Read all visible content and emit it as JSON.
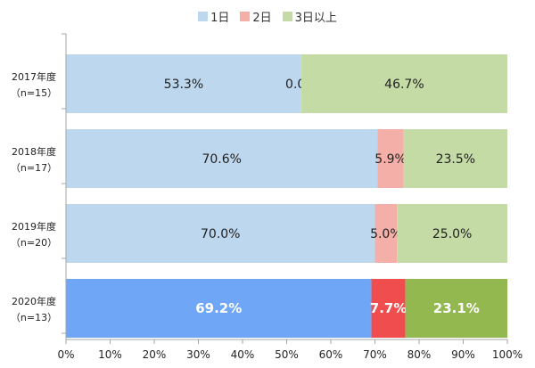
{
  "chart_data": {
    "type": "bar",
    "orientation": "horizontal",
    "stacked": "percent",
    "categories": [
      {
        "line1": "2017年度",
        "line2": "（n=15）"
      },
      {
        "line1": "2018年度",
        "line2": "（n=17）"
      },
      {
        "line1": "2019年度",
        "line2": "（n=20）"
      },
      {
        "line1": "2020年度",
        "line2": "（n=13）"
      }
    ],
    "series": [
      {
        "name": "1日",
        "values": [
          53.3,
          70.6,
          70.0,
          69.2
        ],
        "labels": [
          "53.3%",
          "70.6%",
          "70.0%",
          "69.2%"
        ]
      },
      {
        "name": "2日",
        "values": [
          0.0,
          5.9,
          5.0,
          7.7
        ],
        "labels": [
          "0.0%",
          "5.9%",
          "5.0%",
          "7.7%"
        ]
      },
      {
        "name": "3日以上",
        "values": [
          46.7,
          23.5,
          25.0,
          23.1
        ],
        "labels": [
          "46.7%",
          "23.5%",
          "25.0%",
          "23.1%"
        ]
      }
    ],
    "colors": {
      "normal": [
        "#bdd7ee",
        "#f4b0a8",
        "#c5dba6"
      ],
      "highlight": [
        "#6fa6f5",
        "#f04e4e",
        "#92b84f"
      ]
    },
    "highlight_category_index": 3,
    "xlim": [
      0,
      100
    ],
    "xticks": [
      "0%",
      "10%",
      "20%",
      "30%",
      "40%",
      "50%",
      "60%",
      "70%",
      "80%",
      "90%",
      "100%"
    ],
    "legend_position": "top-center",
    "grid": false
  }
}
